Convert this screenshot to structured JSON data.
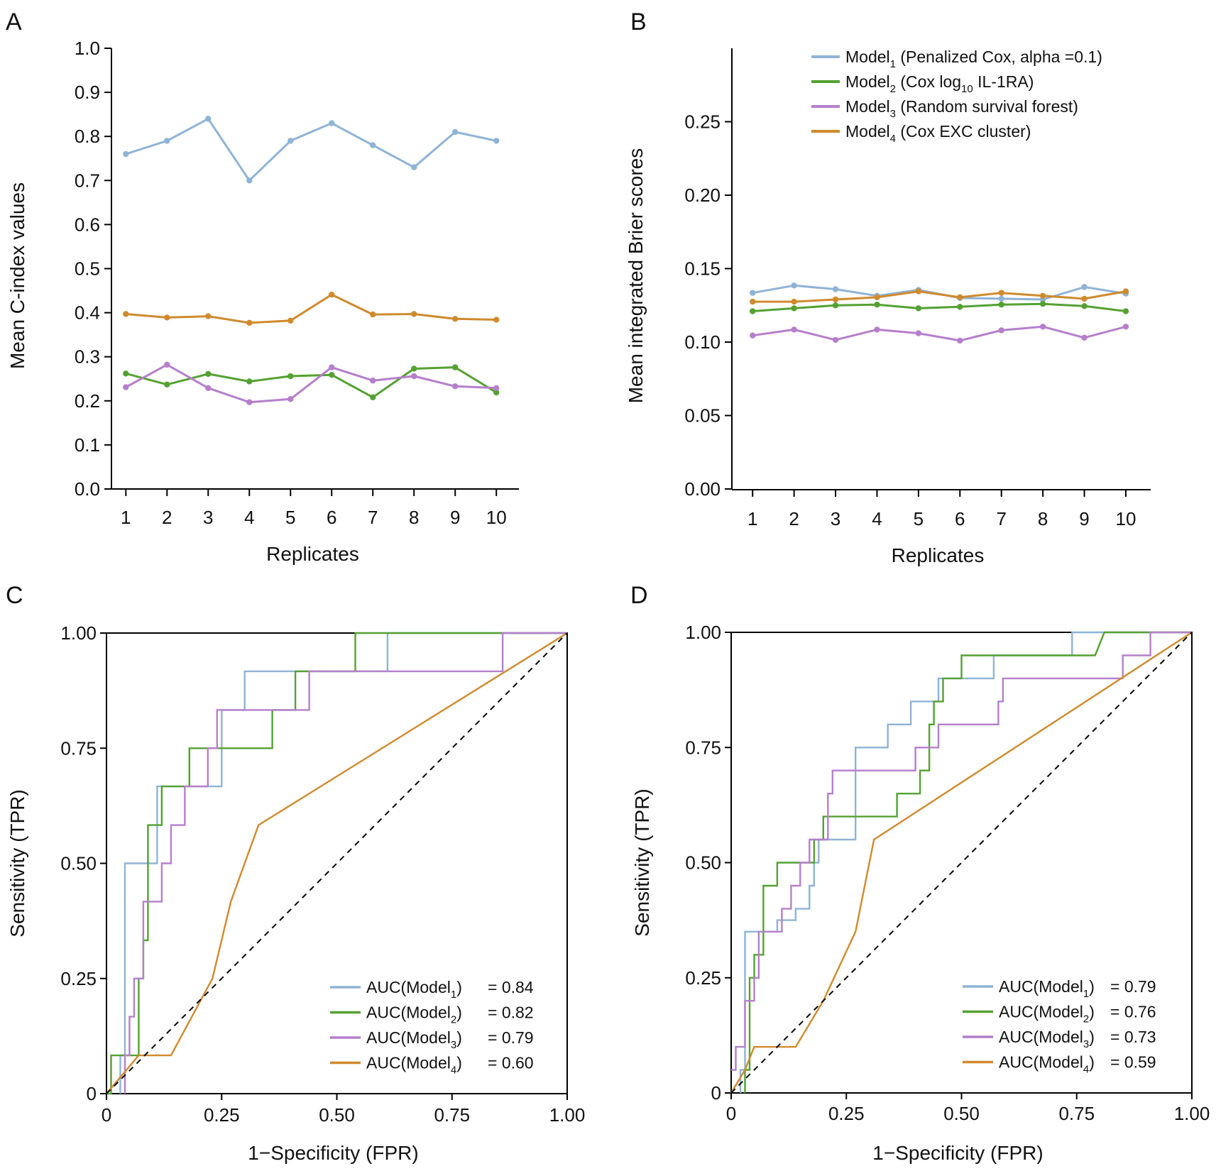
{
  "colors": {
    "model1": "#8fb3d6",
    "model2": "#54a132",
    "model3": "#b57fcc",
    "model4": "#d08a2d",
    "axis": "#000000",
    "diagonal": "#000000"
  },
  "chart_data": [
    {
      "panel": "A",
      "type": "line",
      "xlabel": "Replicates",
      "ylabel": "Mean C-index values",
      "xlim": [
        0.65,
        10.6
      ],
      "ylim": [
        0,
        1.0
      ],
      "x": [
        1,
        2,
        3,
        4,
        5,
        6,
        7,
        8,
        9,
        10
      ],
      "xticks": [
        "1",
        "2",
        "3",
        "4",
        "5",
        "6",
        "7",
        "8",
        "9",
        "10"
      ],
      "yticks": [
        "0.0",
        "0.1",
        "0.2",
        "0.3",
        "0.4",
        "0.5",
        "0.6",
        "0.7",
        "0.8",
        "0.9",
        "1.0"
      ],
      "grid": false,
      "series": [
        {
          "name": "Model1",
          "color_key": "model1",
          "values": [
            0.76,
            0.79,
            0.84,
            0.7,
            0.79,
            0.83,
            0.78,
            0.73,
            0.81,
            0.79
          ]
        },
        {
          "name": "Model2",
          "color_key": "model2",
          "values": [
            0.262,
            0.237,
            0.261,
            0.244,
            0.256,
            0.259,
            0.208,
            0.273,
            0.276,
            0.219
          ]
        },
        {
          "name": "Model3",
          "color_key": "model3",
          "values": [
            0.231,
            0.282,
            0.229,
            0.197,
            0.204,
            0.276,
            0.246,
            0.256,
            0.233,
            0.229
          ]
        },
        {
          "name": "Model4",
          "color_key": "model4",
          "values": [
            0.397,
            0.389,
            0.392,
            0.377,
            0.382,
            0.441,
            0.396,
            0.397,
            0.386,
            0.384
          ]
        }
      ]
    },
    {
      "panel": "B",
      "type": "line",
      "xlabel": "Replicates",
      "ylabel": "Mean integrated Brier scores",
      "xlim": [
        0.5,
        10.6
      ],
      "ylim": [
        0,
        0.3
      ],
      "x": [
        1,
        2,
        3,
        4,
        5,
        6,
        7,
        8,
        9,
        10
      ],
      "xticks": [
        "1",
        "2",
        "3",
        "4",
        "5",
        "6",
        "7",
        "8",
        "9",
        "10"
      ],
      "yticks": [
        "0.00",
        "0.05",
        "0.10",
        "0.15",
        "0.20",
        "0.25"
      ],
      "grid": false,
      "legend_position": "top-right",
      "series": [
        {
          "name": "Model1",
          "color_key": "model1",
          "values": [
            0.1335,
            0.1385,
            0.136,
            0.1315,
            0.1355,
            0.13,
            0.1295,
            0.129,
            0.1375,
            0.133
          ]
        },
        {
          "name": "Model2",
          "color_key": "model2",
          "values": [
            0.121,
            0.123,
            0.125,
            0.1255,
            0.123,
            0.124,
            0.1255,
            0.126,
            0.1245,
            0.121
          ]
        },
        {
          "name": "Model3",
          "color_key": "model3",
          "values": [
            0.1045,
            0.1085,
            0.1015,
            0.1085,
            0.106,
            0.101,
            0.108,
            0.1105,
            0.103,
            0.1105
          ]
        },
        {
          "name": "Model4",
          "color_key": "model4",
          "values": [
            0.1275,
            0.1275,
            0.129,
            0.1305,
            0.1345,
            0.1305,
            0.1335,
            0.1315,
            0.1295,
            0.1345
          ]
        }
      ],
      "legend": [
        {
          "main": "Model",
          "sub": "1",
          "rest": " (Penalized Cox, alpha =0.1)",
          "color_key": "model1"
        },
        {
          "main": "Model",
          "sub": "2",
          "rest": " (Cox log",
          "sub2": "10",
          "rest2": " IL-1RA)",
          "color_key": "model2"
        },
        {
          "main": "Model",
          "sub": "3",
          "rest": " (Random survival forest)",
          "color_key": "model3"
        },
        {
          "main": "Model",
          "sub": "4",
          "rest": " (Cox EXC cluster)",
          "color_key": "model4"
        }
      ]
    },
    {
      "panel": "C",
      "type": "line",
      "subtype": "roc",
      "xlabel": "1−Specificity (FPR)",
      "ylabel": "Sensitivity (TPR)",
      "xlim": [
        0,
        1
      ],
      "ylim": [
        0,
        1
      ],
      "xticks": [
        "0",
        "0.25",
        "0.50",
        "0.75",
        "1.00"
      ],
      "yticks": [
        "0",
        "0.25",
        "0.50",
        "0.75",
        "1.00"
      ],
      "grid": false,
      "legend_position": "bottom-right",
      "series": [
        {
          "name": "Model1",
          "color_key": "model1",
          "points": [
            [
              0.03,
              0
            ],
            [
              0.03,
              0.083
            ],
            [
              0.04,
              0.083
            ],
            [
              0.04,
              0.5
            ],
            [
              0.11,
              0.5
            ],
            [
              0.11,
              0.667
            ],
            [
              0.25,
              0.667
            ],
            [
              0.25,
              0.833
            ],
            [
              0.3,
              0.833
            ],
            [
              0.3,
              0.917
            ],
            [
              0.61,
              0.917
            ],
            [
              0.61,
              1.0
            ],
            [
              1.0,
              1.0
            ]
          ]
        },
        {
          "name": "Model2",
          "color_key": "model2",
          "points": [
            [
              0,
              0
            ],
            [
              0.01,
              0
            ],
            [
              0.01,
              0.083
            ],
            [
              0.07,
              0.083
            ],
            [
              0.07,
              0.25
            ],
            [
              0.08,
              0.25
            ],
            [
              0.08,
              0.333
            ],
            [
              0.09,
              0.333
            ],
            [
              0.09,
              0.583
            ],
            [
              0.12,
              0.583
            ],
            [
              0.12,
              0.667
            ],
            [
              0.18,
              0.667
            ],
            [
              0.18,
              0.75
            ],
            [
              0.36,
              0.75
            ],
            [
              0.36,
              0.833
            ],
            [
              0.41,
              0.833
            ],
            [
              0.41,
              0.917
            ],
            [
              0.54,
              0.917
            ],
            [
              0.54,
              1.0
            ],
            [
              1.0,
              1.0
            ]
          ]
        },
        {
          "name": "Model3",
          "color_key": "model3",
          "points": [
            [
              0.04,
              0
            ],
            [
              0.04,
              0.083
            ],
            [
              0.05,
              0.083
            ],
            [
              0.05,
              0.167
            ],
            [
              0.06,
              0.167
            ],
            [
              0.06,
              0.25
            ],
            [
              0.08,
              0.25
            ],
            [
              0.08,
              0.417
            ],
            [
              0.12,
              0.417
            ],
            [
              0.12,
              0.5
            ],
            [
              0.14,
              0.5
            ],
            [
              0.14,
              0.583
            ],
            [
              0.17,
              0.583
            ],
            [
              0.17,
              0.667
            ],
            [
              0.22,
              0.667
            ],
            [
              0.22,
              0.75
            ],
            [
              0.24,
              0.75
            ],
            [
              0.24,
              0.833
            ],
            [
              0.44,
              0.833
            ],
            [
              0.44,
              0.917
            ],
            [
              0.86,
              0.917
            ],
            [
              0.86,
              1.0
            ],
            [
              1.0,
              1.0
            ]
          ]
        },
        {
          "name": "Model4",
          "color_key": "model4",
          "points": [
            [
              0,
              0
            ],
            [
              0.07,
              0.083
            ],
            [
              0.14,
              0.083
            ],
            [
              0.23,
              0.25
            ],
            [
              0.27,
              0.417
            ],
            [
              0.33,
              0.583
            ],
            [
              1.0,
              1.0
            ]
          ]
        },
        {
          "name": "chance",
          "color_key": "diagonal",
          "dashed": true,
          "points": [
            [
              0,
              0
            ],
            [
              1,
              1
            ]
          ]
        }
      ],
      "legend": [
        {
          "prefix": "AUC(Model",
          "sub": "1",
          "suffix": ")",
          "value": "= 0.84",
          "color_key": "model1"
        },
        {
          "prefix": "AUC(Model",
          "sub": "2",
          "suffix": ")",
          "value": "= 0.82",
          "color_key": "model2"
        },
        {
          "prefix": "AUC(Model",
          "sub": "3",
          "suffix": ")",
          "value": "= 0.79",
          "color_key": "model3"
        },
        {
          "prefix": "AUC(Model",
          "sub": "4",
          "suffix": ")",
          "value": "= 0.60",
          "color_key": "model4"
        }
      ]
    },
    {
      "panel": "D",
      "type": "line",
      "subtype": "roc",
      "xlabel": "1−Specificity (FPR)",
      "ylabel": "Sensitivity (TPR)",
      "xlim": [
        0,
        1
      ],
      "ylim": [
        0,
        1
      ],
      "xticks": [
        "0",
        "0.25",
        "0.50",
        "0.75",
        "1.00"
      ],
      "yticks": [
        "0",
        "0.25",
        "0.50",
        "0.75",
        "1.00"
      ],
      "grid": false,
      "legend_position": "bottom-right",
      "series": [
        {
          "name": "Model1",
          "color_key": "model1",
          "points": [
            [
              0.02,
              0
            ],
            [
              0.02,
              0.05
            ],
            [
              0.03,
              0.05
            ],
            [
              0.03,
              0.35
            ],
            [
              0.1,
              0.35
            ],
            [
              0.1,
              0.375
            ],
            [
              0.14,
              0.375
            ],
            [
              0.14,
              0.4
            ],
            [
              0.17,
              0.4
            ],
            [
              0.17,
              0.45
            ],
            [
              0.18,
              0.45
            ],
            [
              0.18,
              0.5
            ],
            [
              0.19,
              0.5
            ],
            [
              0.19,
              0.55
            ],
            [
              0.27,
              0.55
            ],
            [
              0.27,
              0.75
            ],
            [
              0.34,
              0.75
            ],
            [
              0.34,
              0.8
            ],
            [
              0.39,
              0.8
            ],
            [
              0.39,
              0.85
            ],
            [
              0.45,
              0.85
            ],
            [
              0.45,
              0.9
            ],
            [
              0.57,
              0.9
            ],
            [
              0.57,
              0.95
            ],
            [
              0.74,
              0.95
            ],
            [
              0.74,
              1.0
            ],
            [
              1.0,
              1.0
            ]
          ]
        },
        {
          "name": "Model2",
          "color_key": "model2",
          "points": [
            [
              0.03,
              0
            ],
            [
              0.03,
              0.05
            ],
            [
              0.04,
              0.05
            ],
            [
              0.04,
              0.25
            ],
            [
              0.05,
              0.25
            ],
            [
              0.05,
              0.3
            ],
            [
              0.07,
              0.3
            ],
            [
              0.07,
              0.45
            ],
            [
              0.1,
              0.45
            ],
            [
              0.1,
              0.5
            ],
            [
              0.18,
              0.5
            ],
            [
              0.18,
              0.55
            ],
            [
              0.2,
              0.55
            ],
            [
              0.2,
              0.6
            ],
            [
              0.36,
              0.6
            ],
            [
              0.36,
              0.65
            ],
            [
              0.41,
              0.65
            ],
            [
              0.41,
              0.7
            ],
            [
              0.43,
              0.7
            ],
            [
              0.43,
              0.8
            ],
            [
              0.44,
              0.8
            ],
            [
              0.44,
              0.85
            ],
            [
              0.46,
              0.85
            ],
            [
              0.46,
              0.9
            ],
            [
              0.5,
              0.9
            ],
            [
              0.5,
              0.95
            ],
            [
              0.79,
              0.95
            ],
            [
              0.81,
              1.0
            ],
            [
              1.0,
              1.0
            ]
          ]
        },
        {
          "name": "Model3",
          "color_key": "model3",
          "points": [
            [
              0,
              0.05
            ],
            [
              0.01,
              0.05
            ],
            [
              0.01,
              0.1
            ],
            [
              0.03,
              0.1
            ],
            [
              0.03,
              0.2
            ],
            [
              0.05,
              0.2
            ],
            [
              0.05,
              0.25
            ],
            [
              0.06,
              0.25
            ],
            [
              0.06,
              0.35
            ],
            [
              0.11,
              0.35
            ],
            [
              0.11,
              0.4
            ],
            [
              0.13,
              0.4
            ],
            [
              0.13,
              0.45
            ],
            [
              0.15,
              0.45
            ],
            [
              0.15,
              0.5
            ],
            [
              0.17,
              0.5
            ],
            [
              0.17,
              0.55
            ],
            [
              0.21,
              0.55
            ],
            [
              0.21,
              0.65
            ],
            [
              0.22,
              0.65
            ],
            [
              0.22,
              0.7
            ],
            [
              0.4,
              0.7
            ],
            [
              0.4,
              0.75
            ],
            [
              0.45,
              0.75
            ],
            [
              0.45,
              0.8
            ],
            [
              0.58,
              0.8
            ],
            [
              0.58,
              0.85
            ],
            [
              0.59,
              0.85
            ],
            [
              0.59,
              0.9
            ],
            [
              0.85,
              0.9
            ],
            [
              0.85,
              0.95
            ],
            [
              0.91,
              0.95
            ],
            [
              0.91,
              1.0
            ],
            [
              1.0,
              1.0
            ]
          ]
        },
        {
          "name": "Model4",
          "color_key": "model4",
          "points": [
            [
              0,
              0
            ],
            [
              0.03,
              0.05
            ],
            [
              0.05,
              0.1
            ],
            [
              0.14,
              0.1
            ],
            [
              0.2,
              0.2
            ],
            [
              0.27,
              0.35
            ],
            [
              0.31,
              0.55
            ],
            [
              1.0,
              1.0
            ]
          ]
        },
        {
          "name": "chance",
          "color_key": "diagonal",
          "dashed": true,
          "points": [
            [
              0,
              0
            ],
            [
              1,
              1
            ]
          ]
        }
      ],
      "legend": [
        {
          "prefix": "AUC(Model",
          "sub": "1",
          "suffix": ")",
          "value": "= 0.79",
          "color_key": "model1"
        },
        {
          "prefix": "AUC(Model",
          "sub": "2",
          "suffix": ")",
          "value": "= 0.76",
          "color_key": "model2"
        },
        {
          "prefix": "AUC(Model",
          "sub": "3",
          "suffix": ")",
          "value": "= 0.73",
          "color_key": "model3"
        },
        {
          "prefix": "AUC(Model",
          "sub": "4",
          "suffix": ")",
          "value": "= 0.59",
          "color_key": "model4"
        }
      ]
    }
  ]
}
